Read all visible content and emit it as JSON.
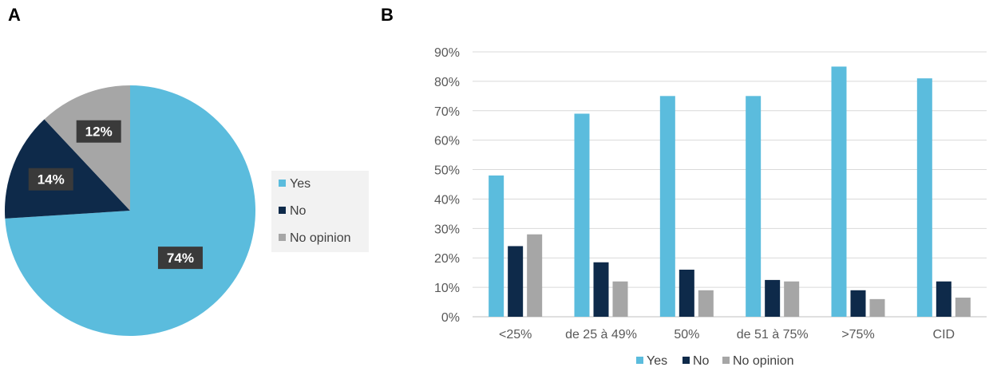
{
  "panels": {
    "a_label": "A",
    "b_label": "B"
  },
  "colors": {
    "yes": "#5BBCDD",
    "no": "#0E2A4A",
    "no_opinion": "#A6A6A6",
    "axis": "#BFBFBF",
    "grid": "#D9D9D9",
    "label_box": "#3A3A3A"
  },
  "chart_data": [
    {
      "type": "pie",
      "categories": [
        "Yes",
        "No",
        "No opinion"
      ],
      "values": [
        74,
        14,
        12
      ],
      "labels": [
        "74%",
        "14%",
        "12%"
      ],
      "legend_position": "right"
    },
    {
      "type": "bar",
      "categories": [
        "<25%",
        "de 25 à 49%",
        "50%",
        "de 51 à 75%",
        ">75%",
        "CID"
      ],
      "series": [
        {
          "name": "Yes",
          "values": [
            48,
            69,
            75,
            75,
            85,
            81
          ]
        },
        {
          "name": "No",
          "values": [
            24,
            18.5,
            16,
            12.5,
            9,
            12
          ]
        },
        {
          "name": "No opinion",
          "values": [
            28,
            12,
            9,
            12,
            6,
            6.5
          ]
        }
      ],
      "ylim": [
        0,
        90
      ],
      "yticks": [
        "0%",
        "10%",
        "20%",
        "30%",
        "40%",
        "50%",
        "60%",
        "70%",
        "80%",
        "90%"
      ],
      "grid": true,
      "legend_position": "bottom"
    }
  ]
}
